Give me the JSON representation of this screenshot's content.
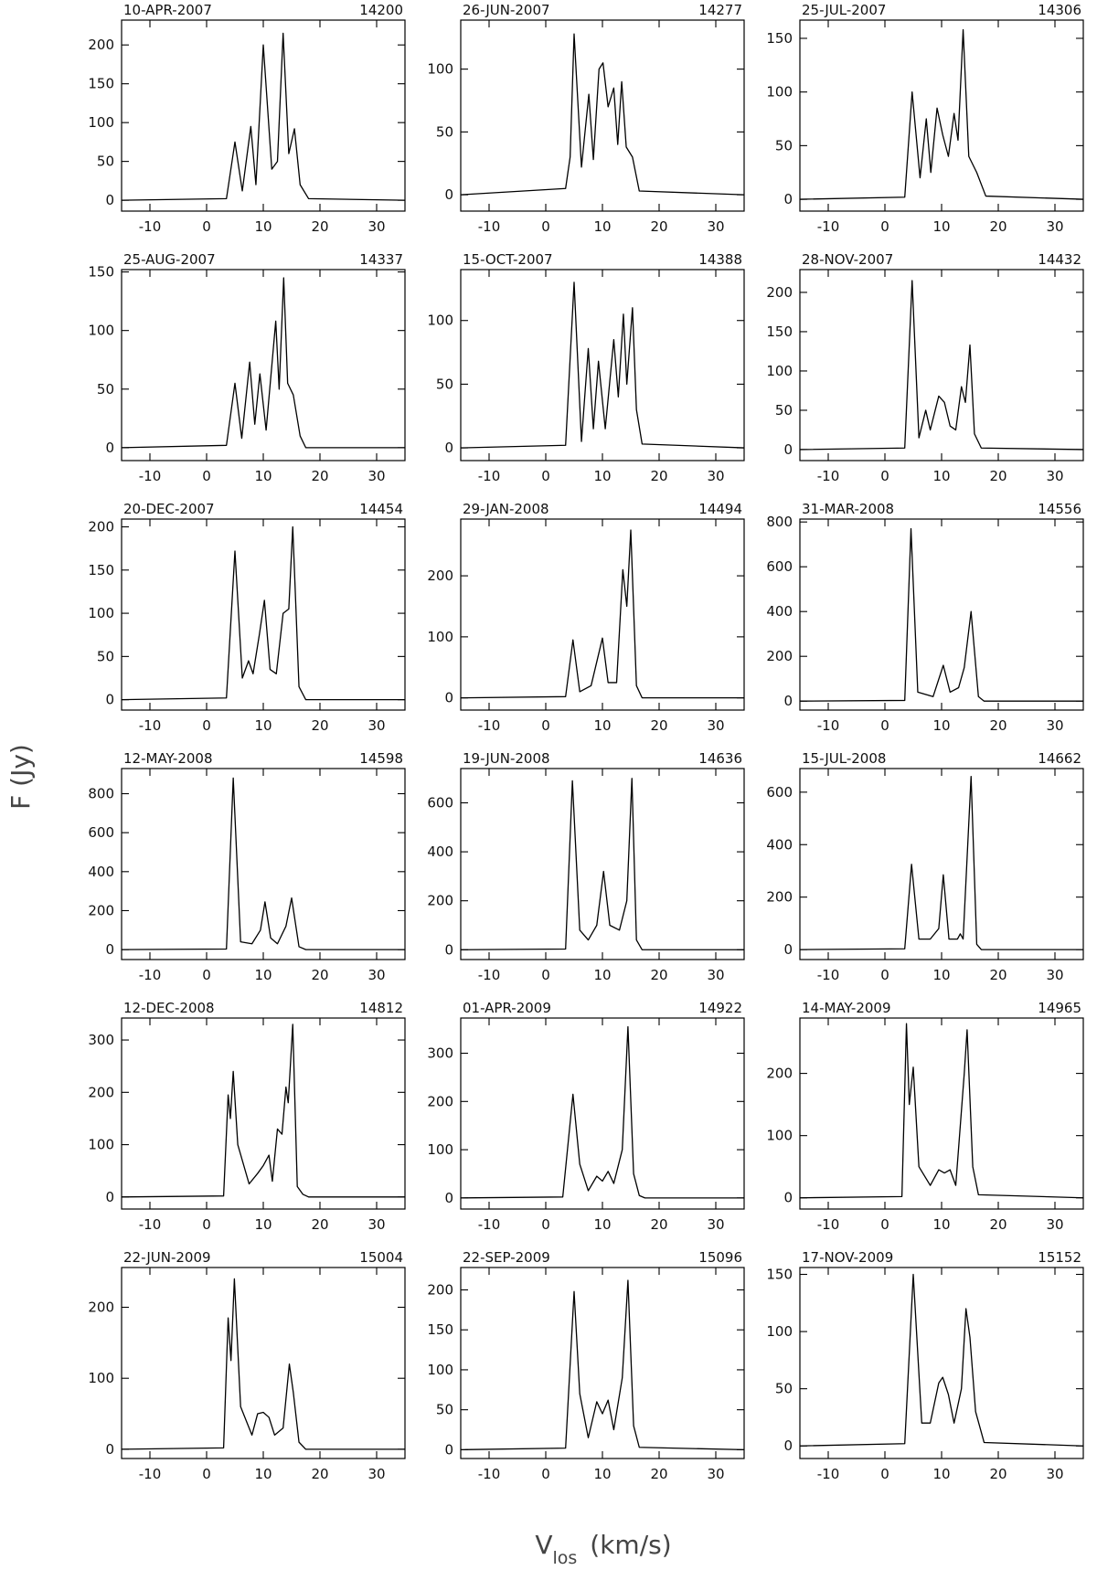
{
  "axis_labels": {
    "y": "F (Jy)",
    "x_symbol": "V",
    "x_subscript": "los",
    "x_unit": "(km/s)"
  },
  "chart_data": [
    {
      "type": "line",
      "title": "10-APR-2007",
      "subtitle": "14200",
      "color": "#000000",
      "xlim": [
        -15,
        35
      ],
      "xticks": [
        -10,
        0,
        10,
        20,
        30
      ],
      "ylim": [
        -14,
        232
      ],
      "yticks": [
        0,
        50,
        100,
        150,
        200
      ],
      "x": [
        -15,
        3.5,
        5,
        6.3,
        7.8,
        8.7,
        10,
        11.5,
        12.5,
        13.5,
        14.5,
        15.5,
        16.5,
        18,
        35
      ],
      "values": [
        0,
        2,
        75,
        12,
        95,
        20,
        200,
        40,
        50,
        215,
        60,
        92,
        20,
        2,
        0
      ]
    },
    {
      "type": "line",
      "title": "26-JUN-2007",
      "subtitle": "14277",
      "color": "#000000",
      "xlim": [
        -15,
        35
      ],
      "xticks": [
        -10,
        0,
        10,
        20,
        30
      ],
      "ylim": [
        -13,
        139
      ],
      "yticks": [
        0,
        50,
        100
      ],
      "x": [
        -15,
        3.5,
        4.3,
        5,
        6.3,
        7.6,
        8.4,
        9.4,
        10.1,
        11,
        12,
        12.7,
        13.4,
        14.2,
        15.3,
        16.5,
        35
      ],
      "values": [
        0,
        5,
        30,
        128,
        22,
        80,
        28,
        100,
        105,
        70,
        85,
        40,
        90,
        38,
        30,
        3,
        0
      ]
    },
    {
      "type": "line",
      "title": "25-JUL-2007",
      "subtitle": "14306",
      "color": "#000000",
      "xlim": [
        -15,
        35
      ],
      "xticks": [
        -10,
        0,
        10,
        20,
        30
      ],
      "ylim": [
        -11,
        167
      ],
      "yticks": [
        0,
        50,
        100,
        150
      ],
      "x": [
        -15,
        3.5,
        4.8,
        6.2,
        7.3,
        8.1,
        9.2,
        10.2,
        11.2,
        12.2,
        12.9,
        13.8,
        14.8,
        16.2,
        17.8,
        35
      ],
      "values": [
        0,
        2,
        100,
        20,
        75,
        25,
        85,
        60,
        40,
        80,
        55,
        158,
        40,
        25,
        3,
        0
      ]
    },
    {
      "type": "line",
      "title": "25-AUG-2007",
      "subtitle": "14337",
      "color": "#000000",
      "xlim": [
        -15,
        35
      ],
      "xticks": [
        -10,
        0,
        10,
        20,
        30
      ],
      "ylim": [
        -11,
        152
      ],
      "yticks": [
        0,
        50,
        100,
        150
      ],
      "x": [
        -15,
        3.5,
        5,
        6.2,
        7.6,
        8.5,
        9.4,
        10.5,
        12.2,
        12.8,
        13.6,
        14.3,
        15.3,
        16.5,
        17.5,
        35
      ],
      "values": [
        0,
        2,
        55,
        8,
        73,
        20,
        63,
        15,
        108,
        50,
        145,
        55,
        45,
        10,
        0,
        0
      ]
    },
    {
      "type": "line",
      "title": "15-OCT-2007",
      "subtitle": "14388",
      "color": "#000000",
      "xlim": [
        -15,
        35
      ],
      "xticks": [
        -10,
        0,
        10,
        20,
        30
      ],
      "ylim": [
        -10,
        140
      ],
      "yticks": [
        0,
        50,
        100
      ],
      "x": [
        -15,
        3.5,
        5,
        6.3,
        7.5,
        8.4,
        9.3,
        10.5,
        12,
        12.8,
        13.7,
        14.3,
        15.3,
        16,
        17,
        35
      ],
      "values": [
        0,
        2,
        130,
        5,
        78,
        15,
        68,
        15,
        85,
        40,
        105,
        50,
        110,
        30,
        3,
        0
      ]
    },
    {
      "type": "line",
      "title": "28-NOV-2007",
      "subtitle": "14432",
      "color": "#000000",
      "xlim": [
        -15,
        35
      ],
      "xticks": [
        -10,
        0,
        10,
        20,
        30
      ],
      "ylim": [
        -14,
        229
      ],
      "yticks": [
        0,
        50,
        100,
        150,
        200
      ],
      "x": [
        -15,
        3.5,
        4.8,
        6,
        7.2,
        8,
        9.5,
        10.5,
        11.5,
        12.5,
        13.5,
        14.2,
        15,
        15.8,
        17,
        35
      ],
      "values": [
        0,
        2,
        215,
        15,
        50,
        25,
        68,
        60,
        30,
        25,
        80,
        60,
        133,
        20,
        2,
        0
      ]
    },
    {
      "type": "line",
      "title": "20-DEC-2007",
      "subtitle": "14454",
      "color": "#000000",
      "xlim": [
        -15,
        35
      ],
      "xticks": [
        -10,
        0,
        10,
        20,
        30
      ],
      "ylim": [
        -12,
        209
      ],
      "yticks": [
        0,
        50,
        100,
        150,
        200
      ],
      "x": [
        -15,
        3.5,
        5,
        6.3,
        7.4,
        8.2,
        9.3,
        10.2,
        11.2,
        12.3,
        13.5,
        14.5,
        15.2,
        16.3,
        17.5,
        35
      ],
      "values": [
        0,
        2,
        172,
        25,
        45,
        30,
        75,
        115,
        35,
        30,
        100,
        105,
        200,
        15,
        0,
        0
      ]
    },
    {
      "type": "line",
      "title": "29-JAN-2008",
      "subtitle": "14494",
      "color": "#000000",
      "xlim": [
        -15,
        35
      ],
      "xticks": [
        -10,
        0,
        10,
        20,
        30
      ],
      "ylim": [
        -20,
        293
      ],
      "yticks": [
        0,
        100,
        200
      ],
      "x": [
        -15,
        3.5,
        4.8,
        6,
        8,
        10,
        11,
        12.5,
        13.6,
        14.3,
        15,
        16,
        17,
        35
      ],
      "values": [
        0,
        2,
        95,
        10,
        20,
        98,
        25,
        25,
        210,
        150,
        275,
        20,
        0,
        0
      ]
    },
    {
      "type": "line",
      "title": "31-MAR-2008",
      "subtitle": "14556",
      "color": "#000000",
      "xlim": [
        -15,
        35
      ],
      "xticks": [
        -10,
        0,
        10,
        20,
        30
      ],
      "ylim": [
        -40,
        813
      ],
      "yticks": [
        0,
        200,
        400,
        600,
        800
      ],
      "x": [
        -15,
        3.5,
        4.6,
        5.8,
        8.5,
        10.3,
        11.5,
        13,
        14,
        15.2,
        16.5,
        17.5,
        35
      ],
      "values": [
        0,
        3,
        770,
        40,
        20,
        160,
        40,
        60,
        150,
        400,
        20,
        0,
        0
      ]
    },
    {
      "type": "line",
      "title": "12-MAY-2008",
      "subtitle": "14598",
      "color": "#000000",
      "xlim": [
        -15,
        35
      ],
      "xticks": [
        -10,
        0,
        10,
        20,
        30
      ],
      "ylim": [
        -51,
        929
      ],
      "yticks": [
        0,
        200,
        400,
        600,
        800
      ],
      "x": [
        -15,
        3.5,
        4.7,
        6,
        8,
        9.5,
        10.3,
        11.3,
        12.5,
        14,
        15,
        16.3,
        17.5,
        35
      ],
      "values": [
        0,
        3,
        880,
        40,
        30,
        100,
        245,
        60,
        30,
        120,
        265,
        15,
        0,
        0
      ]
    },
    {
      "type": "line",
      "title": "19-JUN-2008",
      "subtitle": "14636",
      "color": "#000000",
      "xlim": [
        -15,
        35
      ],
      "xticks": [
        -10,
        0,
        10,
        20,
        30
      ],
      "ylim": [
        -40,
        740
      ],
      "yticks": [
        0,
        200,
        400,
        600
      ],
      "x": [
        -15,
        3.5,
        4.7,
        6,
        7.5,
        9,
        10.2,
        11.3,
        13,
        14.3,
        15.2,
        16,
        17,
        35
      ],
      "values": [
        0,
        3,
        690,
        80,
        40,
        100,
        320,
        100,
        80,
        200,
        700,
        40,
        0,
        0
      ]
    },
    {
      "type": "line",
      "title": "15-JUL-2008",
      "subtitle": "14662",
      "color": "#000000",
      "xlim": [
        -15,
        35
      ],
      "xticks": [
        -10,
        0,
        10,
        20,
        30
      ],
      "ylim": [
        -38,
        690
      ],
      "yticks": [
        0,
        200,
        400,
        600
      ],
      "x": [
        -15,
        3.5,
        4.7,
        6,
        8,
        9.5,
        10.3,
        11.3,
        12.8,
        13.3,
        13.8,
        15.2,
        16.2,
        17,
        35
      ],
      "values": [
        0,
        3,
        325,
        40,
        40,
        80,
        285,
        40,
        40,
        60,
        40,
        660,
        20,
        0,
        0
      ]
    },
    {
      "type": "line",
      "title": "12-DEC-2008",
      "subtitle": "14812",
      "color": "#000000",
      "xlim": [
        -15,
        35
      ],
      "xticks": [
        -10,
        0,
        10,
        20,
        30
      ],
      "ylim": [
        -23,
        342
      ],
      "yticks": [
        0,
        100,
        200,
        300
      ],
      "x": [
        -15,
        3,
        3.8,
        4.2,
        4.7,
        5.5,
        7.5,
        9,
        10,
        11,
        11.6,
        12.5,
        13.3,
        14,
        14.4,
        15.2,
        16,
        17,
        18,
        35
      ],
      "values": [
        0,
        2,
        195,
        150,
        240,
        100,
        25,
        45,
        60,
        80,
        30,
        130,
        120,
        210,
        180,
        330,
        20,
        5,
        0,
        0
      ]
    },
    {
      "type": "line",
      "title": "01-APR-2009",
      "subtitle": "14922",
      "color": "#000000",
      "xlim": [
        -15,
        35
      ],
      "xticks": [
        -10,
        0,
        10,
        20,
        30
      ],
      "ylim": [
        -23,
        373
      ],
      "yticks": [
        0,
        100,
        200,
        300
      ],
      "x": [
        -15,
        3,
        4.8,
        6,
        7.5,
        9,
        10,
        11,
        12,
        13.5,
        14.5,
        15.5,
        16.5,
        17.5,
        35
      ],
      "values": [
        0,
        2,
        215,
        70,
        15,
        45,
        35,
        55,
        30,
        100,
        355,
        50,
        5,
        0,
        0
      ]
    },
    {
      "type": "line",
      "title": "14-MAY-2009",
      "subtitle": "14965",
      "color": "#000000",
      "xlim": [
        -15,
        35
      ],
      "xticks": [
        -10,
        0,
        10,
        20,
        30
      ],
      "ylim": [
        -18,
        289
      ],
      "yticks": [
        0,
        100,
        200
      ],
      "x": [
        -15,
        3,
        3.8,
        4.3,
        5,
        6,
        8,
        9.5,
        10.5,
        11.5,
        12.5,
        14,
        14.5,
        15.5,
        16.5,
        35
      ],
      "values": [
        0,
        2,
        280,
        150,
        210,
        50,
        20,
        45,
        40,
        45,
        20,
        200,
        270,
        50,
        5,
        0
      ]
    },
    {
      "type": "line",
      "title": "22-JUN-2009",
      "subtitle": "15004",
      "color": "#000000",
      "xlim": [
        -15,
        35
      ],
      "xticks": [
        -10,
        0,
        10,
        20,
        30
      ],
      "ylim": [
        -13,
        256
      ],
      "yticks": [
        0,
        100,
        200
      ],
      "x": [
        -15,
        3,
        3.8,
        4.3,
        4.9,
        6,
        8,
        9,
        10,
        11,
        12,
        13.5,
        14.6,
        15.3,
        16.3,
        17.5,
        35
      ],
      "values": [
        0,
        2,
        185,
        125,
        240,
        60,
        20,
        50,
        52,
        45,
        20,
        30,
        120,
        80,
        10,
        0,
        0
      ]
    },
    {
      "type": "line",
      "title": "22-SEP-2009",
      "subtitle": "15096",
      "color": "#000000",
      "xlim": [
        -15,
        35
      ],
      "xticks": [
        -10,
        0,
        10,
        20,
        30
      ],
      "ylim": [
        -11,
        228
      ],
      "yticks": [
        0,
        50,
        100,
        150,
        200
      ],
      "x": [
        -15,
        3.5,
        5,
        6,
        7.5,
        9,
        10,
        11,
        12,
        13.5,
        14.5,
        15.5,
        16.5,
        35
      ],
      "values": [
        0,
        2,
        198,
        70,
        15,
        60,
        45,
        62,
        25,
        90,
        212,
        30,
        3,
        0
      ]
    },
    {
      "type": "line",
      "title": "17-NOV-2009",
      "subtitle": "15152",
      "color": "#000000",
      "xlim": [
        -15,
        35
      ],
      "xticks": [
        -10,
        0,
        10,
        20,
        30
      ],
      "ylim": [
        -11,
        156
      ],
      "yticks": [
        0,
        50,
        100,
        150
      ],
      "x": [
        -15,
        3.5,
        5,
        6.5,
        8,
        9.5,
        10.2,
        11.2,
        12.2,
        13.5,
        14.3,
        15,
        16,
        17.5,
        35
      ],
      "values": [
        0,
        2,
        150,
        20,
        20,
        55,
        60,
        45,
        20,
        50,
        120,
        95,
        30,
        3,
        0
      ]
    }
  ]
}
